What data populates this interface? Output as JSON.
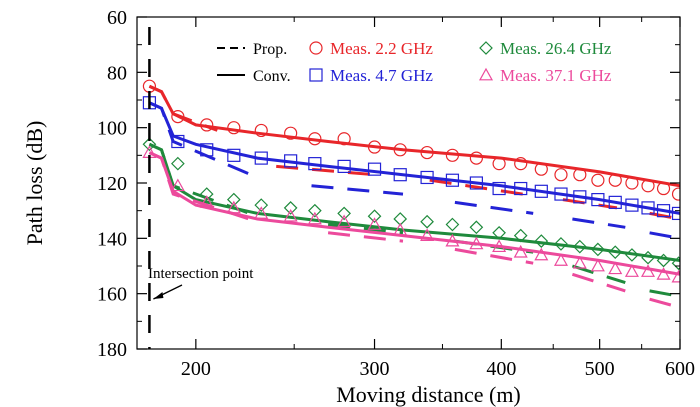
{
  "chart_data": {
    "type": "line",
    "title": "",
    "xlabel": "Moving distance (m)",
    "ylabel": "Path loss (dB)",
    "x_scale": "log",
    "xlim": [
      175,
      600
    ],
    "ylim": [
      180,
      60
    ],
    "y_inverted": true,
    "grid": false,
    "legend_position": "top-right",
    "x_ticks": [
      {
        "value": 200,
        "label": "200"
      },
      {
        "value": 300,
        "label": "300"
      },
      {
        "value": 400,
        "label": "400"
      },
      {
        "value": 500,
        "label": "500"
      },
      {
        "value": 600,
        "label": "600"
      }
    ],
    "y_ticks": [
      {
        "value": 60,
        "label": "60"
      },
      {
        "value": 80,
        "label": "80"
      },
      {
        "value": 100,
        "label": "100"
      },
      {
        "value": 120,
        "label": "120"
      },
      {
        "value": 140,
        "label": "140"
      },
      {
        "value": 160,
        "label": "160"
      },
      {
        "value": 180,
        "label": "180"
      }
    ],
    "legend": {
      "line_entries": [
        {
          "label": "Prop.",
          "style": "dashed"
        },
        {
          "label": "Conv.",
          "style": "solid"
        }
      ],
      "marker_entries": [
        {
          "label": "Meas. 2.2 GHz",
          "marker": "circle",
          "color": "#e8262a"
        },
        {
          "label": "Meas. 26.4 GHz",
          "marker": "diamond",
          "color": "#1f8a3c"
        },
        {
          "label": "Meas. 4.7 GHz",
          "marker": "square",
          "color": "#2323d6"
        },
        {
          "label": "Meas. 37.1 GHz",
          "marker": "triangle",
          "color": "#ec4a9c"
        }
      ]
    },
    "annotation": {
      "text": "Intersection point",
      "x": 180,
      "y": 165
    },
    "intersection_x": 180,
    "series": [
      {
        "freq": "2.2 GHz",
        "color": "#e8262a",
        "marker": "circle",
        "measured": [
          [
            180,
            85
          ],
          [
            192,
            96
          ],
          [
            205,
            99
          ],
          [
            218,
            100
          ],
          [
            232,
            101
          ],
          [
            248,
            102
          ],
          [
            262,
            104
          ],
          [
            280,
            104
          ],
          [
            300,
            107
          ],
          [
            318,
            108
          ],
          [
            338,
            109
          ],
          [
            358,
            110
          ],
          [
            378,
            111
          ],
          [
            398,
            113
          ],
          [
            418,
            113
          ],
          [
            438,
            115
          ],
          [
            458,
            117
          ],
          [
            478,
            117
          ],
          [
            498,
            119
          ],
          [
            518,
            119
          ],
          [
            538,
            120
          ],
          [
            558,
            121
          ],
          [
            578,
            122
          ],
          [
            598,
            124
          ]
        ],
        "conv": [
          [
            180,
            85
          ],
          [
            185,
            87
          ],
          [
            190,
            95
          ],
          [
            200,
            99
          ],
          [
            230,
            102
          ],
          [
            270,
            105
          ],
          [
            320,
            108
          ],
          [
            400,
            111
          ],
          [
            500,
            116
          ],
          [
            600,
            121
          ]
        ],
        "prop_segments": [
          [
            [
              180,
              85
            ],
            [
              185,
              87
            ],
            [
              190,
              95
            ],
            [
              210,
              101
            ]
          ],
          [
            [
              240,
              114
            ],
            [
              300,
              117
            ]
          ],
          [
            [
              340,
              119
            ],
            [
              420,
              124
            ]
          ],
          [
            [
              460,
              126
            ],
            [
              520,
              129
            ]
          ],
          [
            [
              560,
              131
            ],
            [
              600,
              133
            ]
          ]
        ]
      },
      {
        "freq": "4.7 GHz",
        "color": "#2323d6",
        "marker": "square",
        "measured": [
          [
            180,
            91
          ],
          [
            192,
            105
          ],
          [
            205,
            108
          ],
          [
            218,
            110
          ],
          [
            232,
            111
          ],
          [
            248,
            112
          ],
          [
            262,
            113
          ],
          [
            280,
            114
          ],
          [
            300,
            115
          ],
          [
            318,
            117
          ],
          [
            338,
            118
          ],
          [
            358,
            119
          ],
          [
            378,
            120
          ],
          [
            398,
            122
          ],
          [
            418,
            122
          ],
          [
            438,
            123
          ],
          [
            458,
            124
          ],
          [
            478,
            125
          ],
          [
            498,
            126
          ],
          [
            518,
            127
          ],
          [
            538,
            128
          ],
          [
            558,
            129
          ],
          [
            578,
            130
          ],
          [
            598,
            131
          ]
        ],
        "conv": [
          [
            180,
            91
          ],
          [
            185,
            93
          ],
          [
            190,
            103
          ],
          [
            200,
            106
          ],
          [
            230,
            111
          ],
          [
            270,
            114
          ],
          [
            320,
            117
          ],
          [
            400,
            121
          ],
          [
            500,
            126
          ],
          [
            600,
            131
          ]
        ],
        "prop_segments": [
          [
            [
              180,
              91
            ],
            [
              185,
              93
            ],
            [
              190,
              105
            ],
            [
              230,
              118
            ]
          ],
          [
            [
              260,
              121
            ],
            [
              320,
              124
            ]
          ],
          [
            [
              360,
              127
            ],
            [
              430,
              131
            ]
          ],
          [
            [
              470,
              133
            ],
            [
              530,
              136
            ]
          ],
          [
            [
              560,
              138
            ],
            [
              600,
              140
            ]
          ]
        ]
      },
      {
        "freq": "26.4 GHz",
        "color": "#1f8a3c",
        "marker": "diamond",
        "measured": [
          [
            180,
            106
          ],
          [
            192,
            113
          ],
          [
            205,
            124
          ],
          [
            218,
            126
          ],
          [
            232,
            128
          ],
          [
            248,
            129
          ],
          [
            262,
            130
          ],
          [
            280,
            131
          ],
          [
            300,
            132
          ],
          [
            318,
            133
          ],
          [
            338,
            134
          ],
          [
            358,
            135
          ],
          [
            378,
            136
          ],
          [
            398,
            138
          ],
          [
            418,
            139
          ],
          [
            438,
            141
          ],
          [
            458,
            142
          ],
          [
            478,
            143
          ],
          [
            498,
            144
          ],
          [
            518,
            145
          ],
          [
            538,
            146
          ],
          [
            558,
            147
          ],
          [
            578,
            148
          ],
          [
            598,
            149
          ]
        ],
        "conv": [
          [
            180,
            106
          ],
          [
            185,
            108
          ],
          [
            190,
            121
          ],
          [
            200,
            126
          ],
          [
            230,
            131
          ],
          [
            270,
            134
          ],
          [
            320,
            137
          ],
          [
            400,
            140
          ],
          [
            500,
            144
          ],
          [
            600,
            148
          ]
        ],
        "prop_segments": [
          [
            [
              180,
              106
            ],
            [
              185,
              108
            ],
            [
              190,
              121
            ],
            [
              230,
              132
            ]
          ],
          [
            [
              270,
              135
            ],
            [
              320,
              138
            ]
          ],
          [
            [
              360,
              141
            ],
            [
              430,
              145
            ]
          ],
          [
            [
              470,
              150
            ],
            [
              530,
              156
            ]
          ],
          [
            [
              560,
              159
            ],
            [
              600,
              161
            ]
          ]
        ]
      },
      {
        "freq": "37.1 GHz",
        "color": "#ec4a9c",
        "marker": "triangle",
        "measured": [
          [
            180,
            109
          ],
          [
            192,
            121
          ],
          [
            205,
            127
          ],
          [
            218,
            129
          ],
          [
            232,
            131
          ],
          [
            248,
            132
          ],
          [
            262,
            133
          ],
          [
            280,
            134
          ],
          [
            300,
            135
          ],
          [
            318,
            137
          ],
          [
            338,
            139
          ],
          [
            358,
            141
          ],
          [
            378,
            142
          ],
          [
            398,
            143
          ],
          [
            418,
            145
          ],
          [
            438,
            146
          ],
          [
            458,
            148
          ],
          [
            478,
            149
          ],
          [
            498,
            150
          ],
          [
            518,
            151
          ],
          [
            538,
            152
          ],
          [
            558,
            152
          ],
          [
            578,
            153
          ],
          [
            598,
            154
          ]
        ],
        "conv": [
          [
            180,
            109
          ],
          [
            185,
            111
          ],
          [
            190,
            123
          ],
          [
            200,
            128
          ],
          [
            230,
            133
          ],
          [
            270,
            136
          ],
          [
            320,
            139
          ],
          [
            400,
            143
          ],
          [
            500,
            148
          ],
          [
            600,
            153
          ]
        ],
        "prop_segments": [
          [
            [
              180,
              109
            ],
            [
              185,
              111
            ],
            [
              190,
              124
            ],
            [
              230,
              134
            ]
          ],
          [
            [
              270,
              138
            ],
            [
              320,
              141
            ]
          ],
          [
            [
              360,
              144
            ],
            [
              430,
              149
            ]
          ],
          [
            [
              470,
              153
            ],
            [
              530,
              159
            ]
          ],
          [
            [
              560,
              162
            ],
            [
              600,
              165
            ]
          ]
        ]
      }
    ]
  }
}
